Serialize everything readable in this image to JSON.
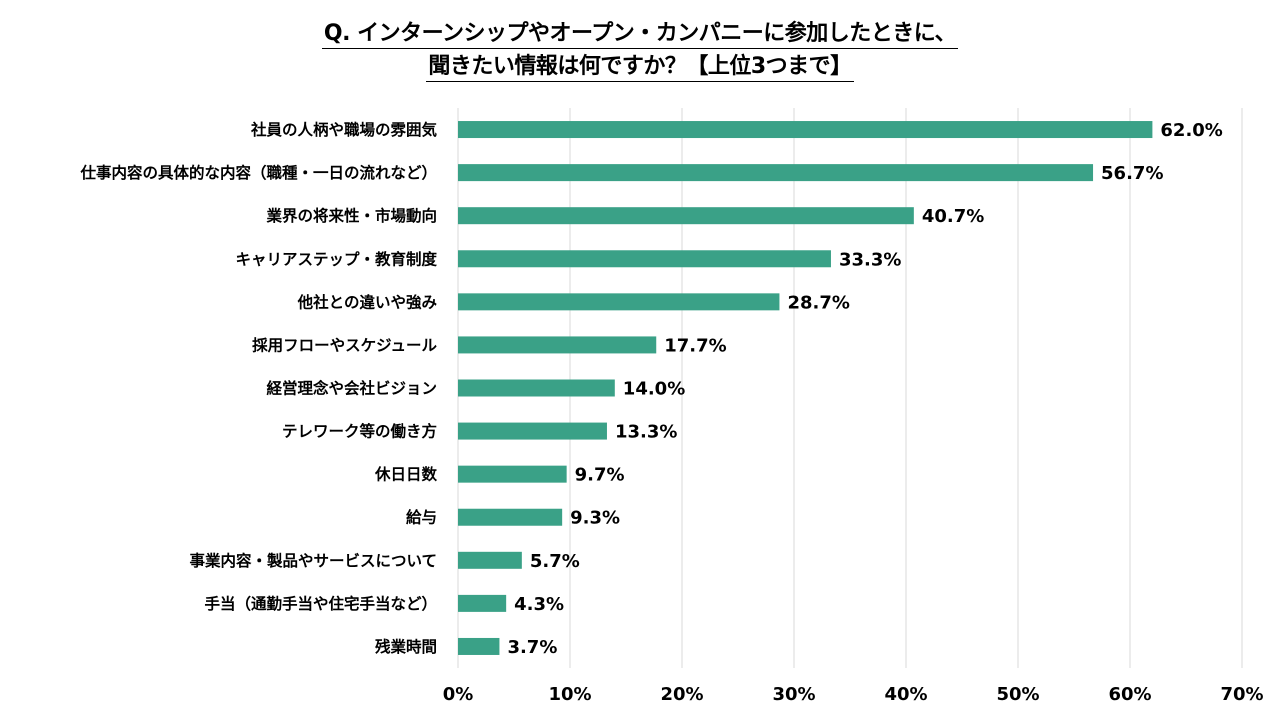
{
  "chart_data": {
    "type": "bar",
    "orientation": "horizontal",
    "title_lines": [
      "Q. インターンシップやオープン・カンパニーに参加したときに、",
      "聞きたい情報は何ですか？【上位3つまで】"
    ],
    "categories": [
      "社員の人柄や職場の雰囲気",
      "仕事内容の具体的な内容（職種・一日の流れなど）",
      "業界の将来性・市場動向",
      "キャリアステップ・教育制度",
      "他社との違いや強み",
      "採用フローやスケジュール",
      "経営理念や会社ビジョン",
      "テレワーク等の働き方",
      "休日日数",
      "給与",
      "事業内容・製品やサービスについて",
      "手当（通勤手当や住宅手当など）",
      "残業時間"
    ],
    "values": [
      62.0,
      56.7,
      40.7,
      33.3,
      28.7,
      17.7,
      14.0,
      13.3,
      9.7,
      9.3,
      5.7,
      4.3,
      3.7
    ],
    "value_labels": [
      "62.0%",
      "56.7%",
      "40.7%",
      "33.3%",
      "28.7%",
      "17.7%",
      "14.0%",
      "13.3%",
      "9.7%",
      "9.3%",
      "5.7%",
      "4.3%",
      "3.7%"
    ],
    "xlim": [
      0,
      70
    ],
    "x_ticks": [
      0,
      10,
      20,
      30,
      40,
      50,
      60,
      70
    ],
    "x_tick_labels": [
      "0%",
      "10%",
      "20%",
      "30%",
      "40%",
      "50%",
      "60%",
      "70%"
    ],
    "xlabel": "",
    "ylabel": "",
    "grid": true,
    "legend": "none",
    "bar_color": "#3aa187",
    "grid_color": "#d9d9d9"
  }
}
